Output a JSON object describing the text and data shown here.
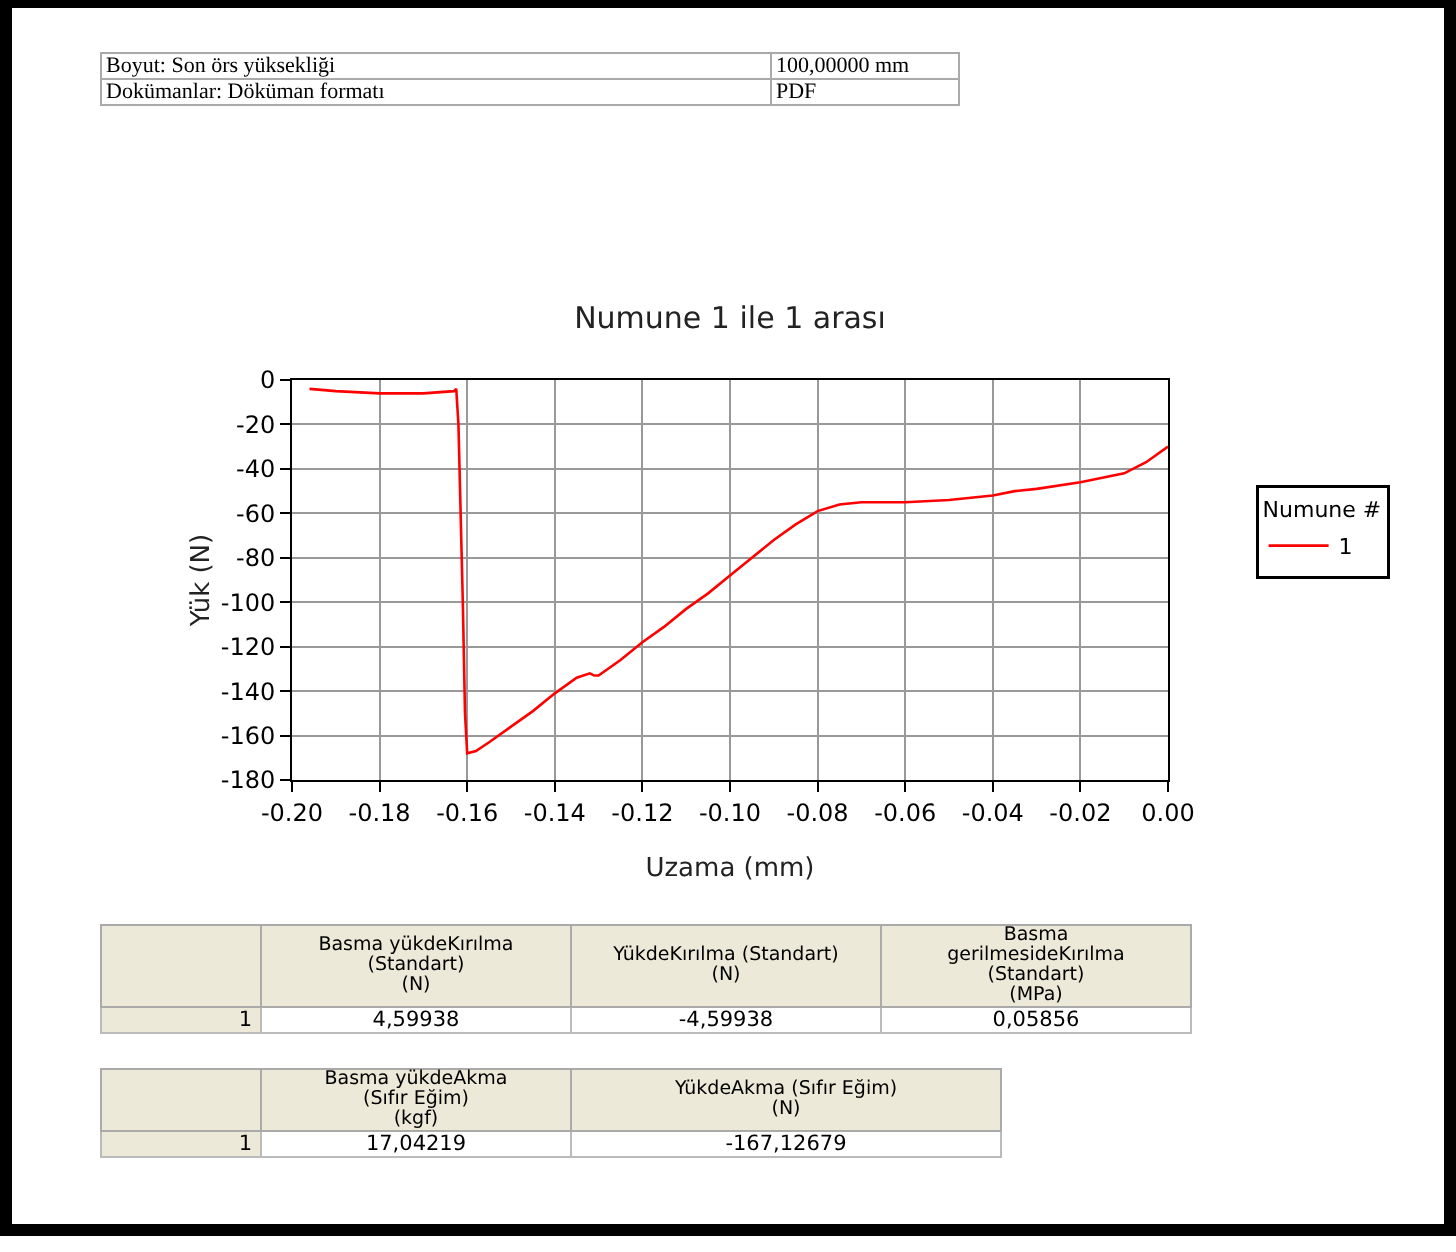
{
  "chart_data": [
    {
      "type": "other",
      "annotations": [
        "Boyut: Son örs yüksekliği",
        "100,00000 mm",
        "Dokümanlar: Döküman formatı",
        "PDF"
      ]
    },
    {
      "type": "line",
      "title": "Numune 1 ile 1 arası",
      "xlabel": "Uzama (mm)",
      "ylabel": "Yük (N)",
      "legend_title": "Numune #",
      "legend": "right",
      "grid": true,
      "line_style": "solid",
      "marker": "none",
      "xlim": [
        -0.2,
        0
      ],
      "ylim": [
        -180,
        0
      ],
      "xticks": [
        {
          "value": -0.2,
          "label": "-0.20"
        },
        {
          "value": -0.18,
          "label": "-0.18"
        },
        {
          "value": -0.16,
          "label": "-0.16"
        },
        {
          "value": -0.14,
          "label": "-0.14"
        },
        {
          "value": -0.12,
          "label": "-0.12"
        },
        {
          "value": -0.1,
          "label": "-0.10"
        },
        {
          "value": -0.08,
          "label": "-0.08"
        },
        {
          "value": -0.06,
          "label": "-0.06"
        },
        {
          "value": -0.04,
          "label": "-0.04"
        },
        {
          "value": -0.02,
          "label": "-0.02"
        },
        {
          "value": 0,
          "label": "0.00"
        }
      ],
      "yticks": [
        0,
        -20,
        -40,
        -60,
        -80,
        -100,
        -120,
        -140,
        -160,
        -180
      ],
      "series": [
        {
          "name": "1",
          "color": "#ff0000",
          "x": [
            -0.196,
            -0.19,
            -0.18,
            -0.17,
            -0.163,
            -0.1625,
            -0.162,
            -0.161,
            -0.1605,
            -0.16,
            -0.158,
            -0.155,
            -0.15,
            -0.145,
            -0.14,
            -0.135,
            -0.132,
            -0.131,
            -0.13,
            -0.125,
            -0.12,
            -0.115,
            -0.11,
            -0.105,
            -0.1,
            -0.095,
            -0.09,
            -0.085,
            -0.08,
            -0.075,
            -0.07,
            -0.06,
            -0.05,
            -0.04,
            -0.035,
            -0.03,
            -0.02,
            -0.01,
            -0.005,
            0
          ],
          "values": [
            -4,
            -5,
            -6,
            -6,
            -5,
            -4,
            -20,
            -100,
            -150,
            -168,
            -167,
            -163,
            -156,
            -149,
            -141,
            -134,
            -132,
            -133,
            -133,
            -126,
            -118,
            -111,
            -103,
            -96,
            -88,
            -80,
            -72,
            -65,
            -59,
            -56,
            -55,
            -55,
            -54,
            -52,
            -50,
            -49,
            -46,
            -42,
            -37,
            -30
          ]
        }
      ]
    },
    {
      "type": "other",
      "annotations": [
        "Basma yükdeKırılma\n(Standart)\n(N)",
        "YükdeKırılma (Standart)\n(N)",
        "Basma\ngerilmesideKırılma\n(Standart)\n(MPa)",
        "1",
        "4,59938",
        "-4,59938",
        "0,05856",
        "Basma yükdeAkma\n(Sıfır Eğim)\n(kgf)",
        "YükdeAkma (Sıfır Eğim)\n(N)",
        "1",
        "17,04219",
        "-167,12679"
      ]
    }
  ]
}
